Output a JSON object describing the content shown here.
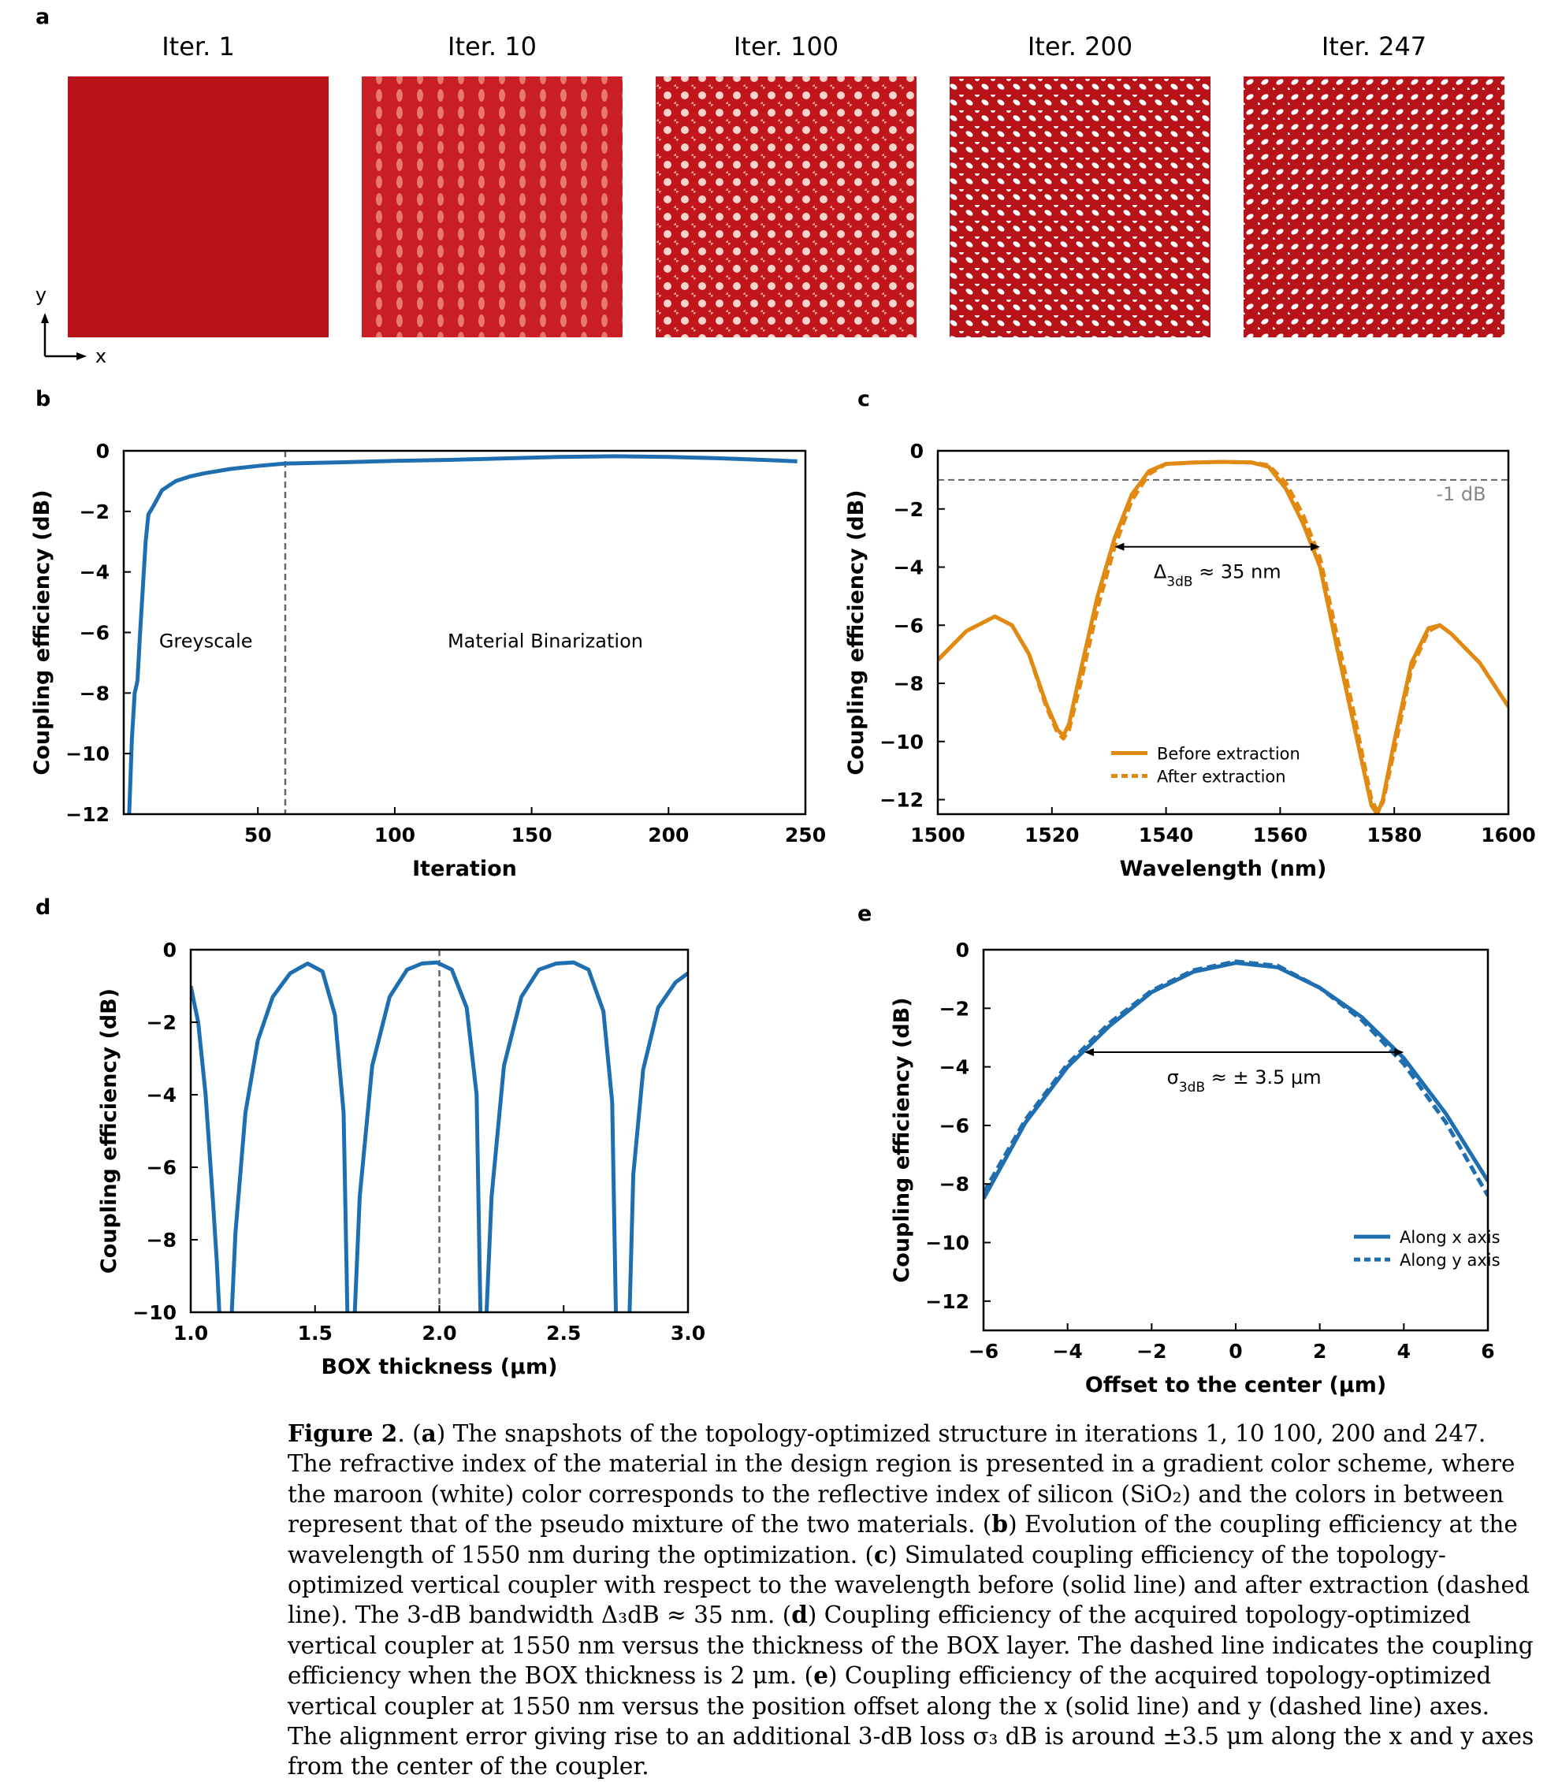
{
  "panel_a": {
    "letter": "a",
    "snapshots": [
      {
        "label": "Iter. 1",
        "level": 0.0
      },
      {
        "label": "Iter. 10",
        "level": 0.35
      },
      {
        "label": "Iter. 100",
        "level": 0.6
      },
      {
        "label": "Iter. 200",
        "level": 0.85
      },
      {
        "label": "Iter. 247",
        "level": 0.9
      }
    ],
    "axis_x": "x",
    "axis_y": "y",
    "colors": {
      "silicon": "#b71319",
      "oxide": "#ffffff"
    }
  },
  "chart_data": [
    {
      "id": "b",
      "letter": "b",
      "type": "line",
      "xlabel": "Iteration",
      "ylabel": "Coupling efficiency (dB)",
      "xlim": [
        1,
        250
      ],
      "ylim": [
        -12,
        0
      ],
      "xticks": [
        50,
        100,
        150,
        200,
        250
      ],
      "xtick_labels": [
        "50",
        "100",
        "150",
        "200",
        "250"
      ],
      "yticks": [
        0,
        -2,
        -4,
        -6,
        -8,
        -10,
        -12
      ],
      "ytick_labels": [
        "0",
        "−2",
        "−4",
        "−6",
        "−8",
        "−10",
        "−12"
      ],
      "vline": 60,
      "annotations": [
        {
          "text": "Greyscale",
          "x": 31,
          "y": -6.5
        },
        {
          "text": "Material Binarization",
          "x": 155,
          "y": -6.5
        }
      ],
      "series": [
        {
          "style": "solid",
          "color": "#1f6fb0",
          "x": [
            3,
            4,
            5,
            6,
            7,
            8,
            9,
            10,
            12,
            15,
            20,
            25,
            30,
            40,
            50,
            60,
            70,
            80,
            100,
            120,
            140,
            160,
            180,
            200,
            220,
            240,
            247
          ],
          "y": [
            -12,
            -9.5,
            -8,
            -7.6,
            -6,
            -4.5,
            -3,
            -2.1,
            -1.8,
            -1.3,
            -1.0,
            -0.85,
            -0.75,
            -0.6,
            -0.5,
            -0.42,
            -0.4,
            -0.38,
            -0.33,
            -0.3,
            -0.25,
            -0.2,
            -0.18,
            -0.2,
            -0.25,
            -0.32,
            -0.35
          ]
        }
      ]
    },
    {
      "id": "c",
      "letter": "c",
      "type": "line",
      "xlabel": "Wavelength (nm)",
      "ylabel": "Coupling efficiency (dB)",
      "xlim": [
        1500,
        1600
      ],
      "ylim": [
        -12.5,
        0
      ],
      "xticks": [
        1500,
        1520,
        1540,
        1560,
        1580,
        1600
      ],
      "xtick_labels": [
        "1500",
        "1520",
        "1540",
        "1560",
        "1580",
        "1600"
      ],
      "yticks": [
        0,
        -2,
        -4,
        -6,
        -8,
        -10,
        -12
      ],
      "ytick_labels": [
        "0",
        "−2",
        "−4",
        "−6",
        "−8",
        "−10",
        "−12"
      ],
      "hline": -1,
      "hline_label": "-1 dB",
      "arrow": {
        "x1": 1531,
        "x2": 1567,
        "y": -3.3,
        "label": "Δ",
        "sub": "3dB",
        "rest": " ≈ 35 nm"
      },
      "legend": [
        "Before extraction",
        "After extraction"
      ],
      "series": [
        {
          "name": "Before extraction",
          "style": "solid",
          "color": "#e08a12",
          "x": [
            1500,
            1505,
            1510,
            1513,
            1516,
            1519,
            1521,
            1522,
            1523,
            1525,
            1528,
            1531,
            1534,
            1537,
            1540,
            1545,
            1550,
            1555,
            1558,
            1561,
            1564,
            1567,
            1570,
            1573,
            1576,
            1577,
            1578,
            1580,
            1583,
            1586,
            1588,
            1590,
            1595,
            1600
          ],
          "y": [
            -7.2,
            -6.2,
            -5.7,
            -6.0,
            -7.0,
            -8.7,
            -9.6,
            -9.8,
            -9.4,
            -7.6,
            -5.0,
            -3.0,
            -1.5,
            -0.7,
            -0.45,
            -0.4,
            -0.38,
            -0.4,
            -0.55,
            -1.3,
            -2.5,
            -4.0,
            -6.8,
            -9.5,
            -12.2,
            -12.5,
            -12.0,
            -10.0,
            -7.3,
            -6.1,
            -6.0,
            -6.3,
            -7.3,
            -8.8
          ]
        },
        {
          "name": "After extraction",
          "style": "dashed",
          "color": "#e08a12",
          "x": [
            1500,
            1505,
            1510,
            1513,
            1516,
            1519,
            1521,
            1522,
            1523,
            1525,
            1528,
            1531,
            1534,
            1537,
            1540,
            1545,
            1550,
            1555,
            1558,
            1561,
            1564,
            1567,
            1570,
            1573,
            1576,
            1577,
            1578,
            1580,
            1583,
            1586,
            1588,
            1590,
            1595,
            1600
          ],
          "y": [
            -7.2,
            -6.2,
            -5.7,
            -6.0,
            -7.0,
            -8.8,
            -9.7,
            -9.9,
            -9.6,
            -8.0,
            -5.4,
            -3.3,
            -1.7,
            -0.8,
            -0.45,
            -0.4,
            -0.38,
            -0.4,
            -0.5,
            -1.1,
            -2.2,
            -3.7,
            -6.4,
            -9.1,
            -12.0,
            -12.4,
            -12.1,
            -10.3,
            -7.5,
            -6.2,
            -6.0,
            -6.3,
            -7.3,
            -8.8
          ]
        }
      ]
    },
    {
      "id": "d",
      "letter": "d",
      "type": "line",
      "xlabel": "BOX thickness (μm)",
      "ylabel": "Coupling efficiency (dB)",
      "xlim": [
        1.0,
        3.0
      ],
      "ylim": [
        -10,
        0
      ],
      "xticks": [
        1.0,
        1.5,
        2.0,
        2.5,
        3.0
      ],
      "xtick_labels": [
        "1.0",
        "1.5",
        "2.0",
        "2.5",
        "3.0"
      ],
      "yticks": [
        0,
        -2,
        -4,
        -6,
        -8,
        -10
      ],
      "ytick_labels": [
        "0",
        "−2",
        "−4",
        "−6",
        "−8",
        "−10"
      ],
      "vline": 2.0,
      "series": [
        {
          "style": "solid",
          "color": "#1f6fb0",
          "x": [
            1.0,
            1.03,
            1.06,
            1.09,
            1.105,
            1.115,
            null,
            1.165,
            1.18,
            1.22,
            1.27,
            1.33,
            1.4,
            1.47,
            1.53,
            1.58,
            1.615,
            1.63,
            null,
            1.66,
            1.68,
            1.73,
            1.8,
            1.87,
            1.93,
            1.99,
            2.05,
            2.11,
            2.15,
            2.165,
            null,
            2.19,
            2.21,
            2.26,
            2.33,
            2.4,
            2.47,
            2.54,
            2.6,
            2.66,
            2.695,
            2.71,
            null,
            2.765,
            2.78,
            2.82,
            2.88,
            2.95,
            3.0
          ],
          "y": [
            -1.0,
            -2.0,
            -4.0,
            -7.0,
            -8.6,
            -10,
            null,
            -10,
            -7.8,
            -4.5,
            -2.5,
            -1.3,
            -0.65,
            -0.38,
            -0.6,
            -1.8,
            -4.5,
            -10,
            null,
            -10,
            -6.8,
            -3.2,
            -1.3,
            -0.55,
            -0.38,
            -0.35,
            -0.55,
            -1.6,
            -4.0,
            -10,
            null,
            -10,
            -6.8,
            -3.2,
            -1.3,
            -0.55,
            -0.38,
            -0.35,
            -0.55,
            -1.7,
            -4.2,
            -10,
            null,
            -10,
            -6.2,
            -3.3,
            -1.6,
            -0.9,
            -0.65
          ]
        }
      ]
    },
    {
      "id": "e",
      "letter": "e",
      "type": "line",
      "xlabel": "Offset to the center (μm)",
      "ylabel": "Coupling efficiency (dB)",
      "xlim": [
        -6,
        6
      ],
      "ylim": [
        -13,
        0
      ],
      "xticks": [
        -6,
        -4,
        -2,
        0,
        2,
        4,
        6
      ],
      "xtick_labels": [
        "−6",
        "−4",
        "−2",
        "0",
        "2",
        "4",
        "6"
      ],
      "yticks": [
        0,
        -2,
        -4,
        -6,
        -8,
        -10,
        -12
      ],
      "ytick_labels": [
        "0",
        "−2",
        "−4",
        "−6",
        "−8",
        "−10",
        "−12"
      ],
      "arrow": {
        "x1": -3.6,
        "x2": 4.0,
        "y": -3.5,
        "label": "σ",
        "sub": "3dB",
        "rest": " ≈ ± 3.5 μm"
      },
      "legend": [
        "Along x axis",
        "Along y axis"
      ],
      "series": [
        {
          "name": "Along x axis",
          "style": "solid",
          "color": "#1f6fb0",
          "x": [
            -6,
            -5,
            -4,
            -3,
            -2,
            -1,
            0,
            1,
            2,
            3,
            4,
            5,
            6
          ],
          "y": [
            -8.5,
            -5.9,
            -4.0,
            -2.6,
            -1.45,
            -0.75,
            -0.45,
            -0.6,
            -1.3,
            -2.3,
            -3.7,
            -5.6,
            -7.9
          ]
        },
        {
          "name": "Along y axis",
          "style": "dashed",
          "color": "#1f6fb0",
          "x": [
            -6,
            -5,
            -4,
            -3,
            -2,
            -1,
            0,
            1,
            2,
            3,
            4,
            5,
            6
          ],
          "y": [
            -8.3,
            -5.8,
            -3.9,
            -2.5,
            -1.4,
            -0.7,
            -0.4,
            -0.55,
            -1.3,
            -2.4,
            -3.9,
            -5.9,
            -8.4
          ]
        }
      ]
    }
  ],
  "caption": {
    "label": "Figure 2",
    "segments": [
      {
        "b": false,
        "t": ".  ("
      },
      {
        "b": true,
        "t": "a"
      },
      {
        "b": false,
        "t": ") The snapshots of the topology-optimized structure in iterations 1, 10 100, 200 and 247. The refractive index of the material in the design region is presented in a gradient color scheme, where the maroon (white) color corresponds to the reflective index of silicon (SiO₂) and the colors in between represent that of the pseudo mixture of the two materials. ("
      },
      {
        "b": true,
        "t": "b"
      },
      {
        "b": false,
        "t": ") Evolution of the coupling efficiency at the wavelength of 1550 nm during the optimization. ("
      },
      {
        "b": true,
        "t": "c"
      },
      {
        "b": false,
        "t": ") Simulated coupling efficiency of the topology-optimized vertical coupler with respect to the wavelength before (solid line) and after extraction (dashed line). The 3-dB bandwidth Δ₃dB ≈ 35 nm. ("
      },
      {
        "b": true,
        "t": "d"
      },
      {
        "b": false,
        "t": ") Coupling efficiency of the acquired topology-optimized vertical coupler at 1550 nm versus the thickness of the BOX layer. The dashed line indicates the coupling efficiency when the BOX thickness is 2 μm. ("
      },
      {
        "b": true,
        "t": "e"
      },
      {
        "b": false,
        "t": ") Coupling efficiency of the acquired topology-optimized vertical coupler at 1550 nm versus the position offset along the x (solid line) and y (dashed line) axes. The alignment error giving rise to an additional 3-dB loss σ₃ dB is around ±3.5 μm along the x and y axes from the center of the coupler."
      }
    ]
  }
}
